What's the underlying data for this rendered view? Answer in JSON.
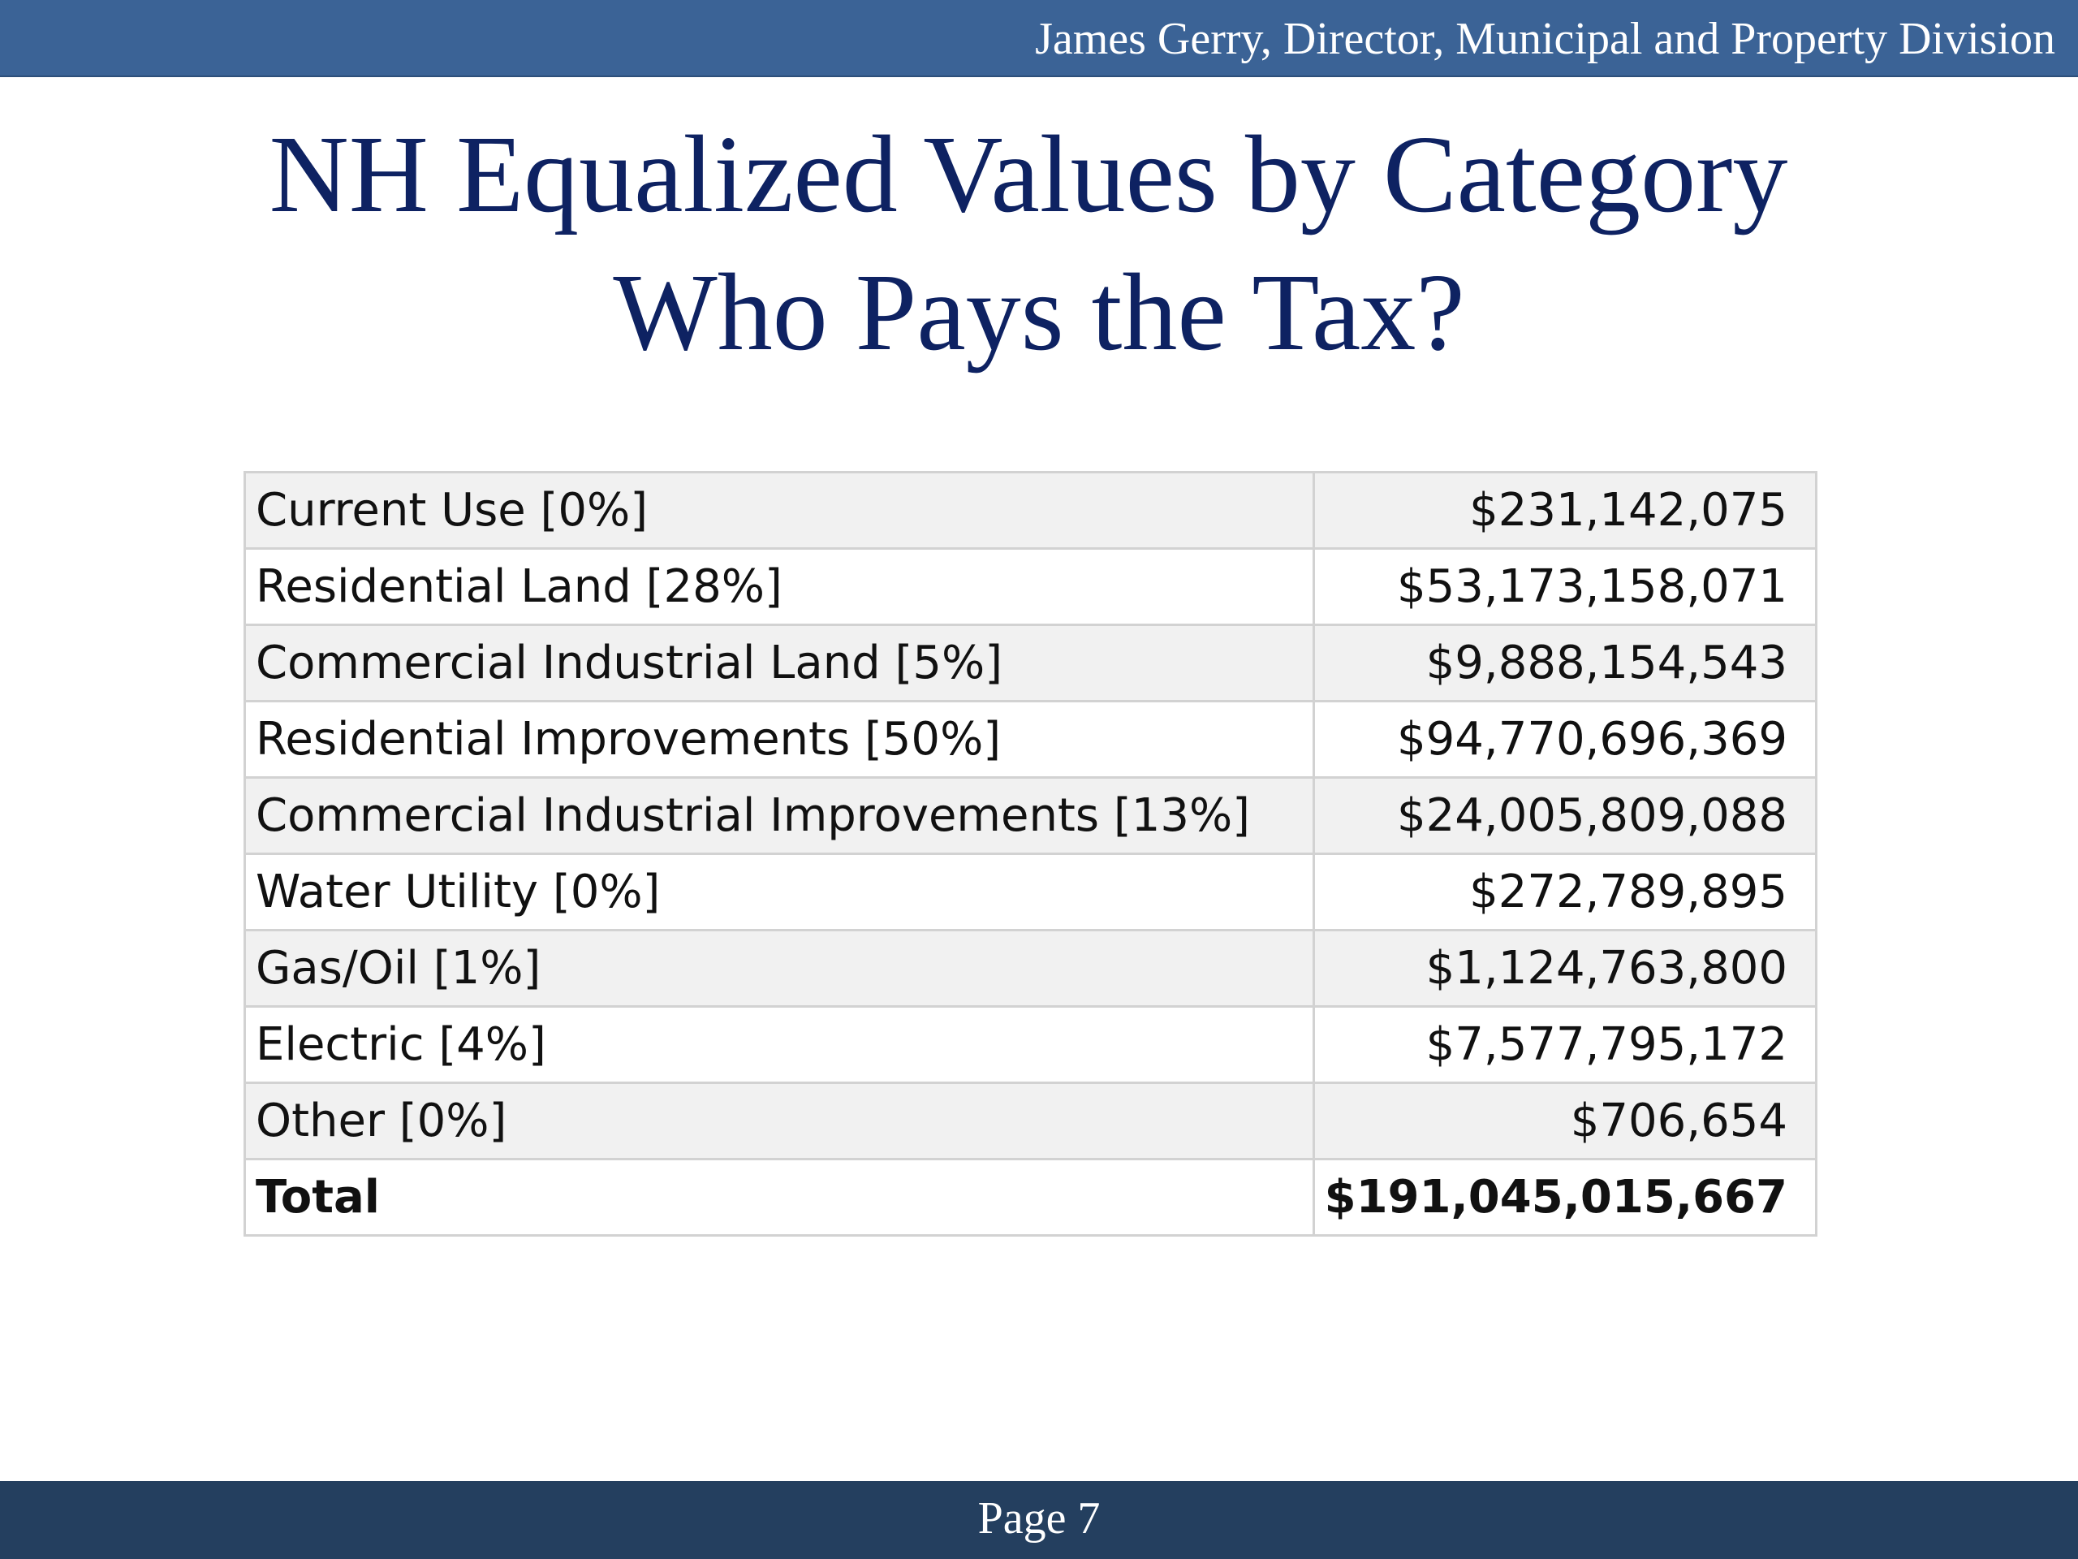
{
  "header": {
    "presenter": "James Gerry, Director, Municipal and Property Division"
  },
  "title": {
    "line1": "NH Equalized Values by Category",
    "line2": "Who Pays the Tax?"
  },
  "table": {
    "rows": [
      {
        "category": "Current Use [0%]",
        "value": "$231,142,075"
      },
      {
        "category": "Residential Land [28%]",
        "value": "$53,173,158,071"
      },
      {
        "category": "Commercial Industrial Land [5%]",
        "value": "$9,888,154,543"
      },
      {
        "category": "Residential Improvements [50%]",
        "value": "$94,770,696,369"
      },
      {
        "category": "Commercial Industrial Improvements [13%]",
        "value": "$24,005,809,088"
      },
      {
        "category": "Water Utility [0%]",
        "value": "$272,789,895"
      },
      {
        "category": "Gas/Oil [1%]",
        "value": "$1,124,763,800"
      },
      {
        "category": "Electric [4%]",
        "value": "$7,577,795,172"
      },
      {
        "category": "Other [0%]",
        "value": "$706,654"
      }
    ],
    "total": {
      "label": "Total",
      "value": "$191,045,015,667"
    }
  },
  "footer": {
    "page_label": "Page 7"
  },
  "colors": {
    "header_bar": "#3b6396",
    "footer_bar": "#243f5f",
    "title_text": "#0e2262",
    "row_shade": "#f1f1f1",
    "table_border": "#d2d2d2"
  }
}
